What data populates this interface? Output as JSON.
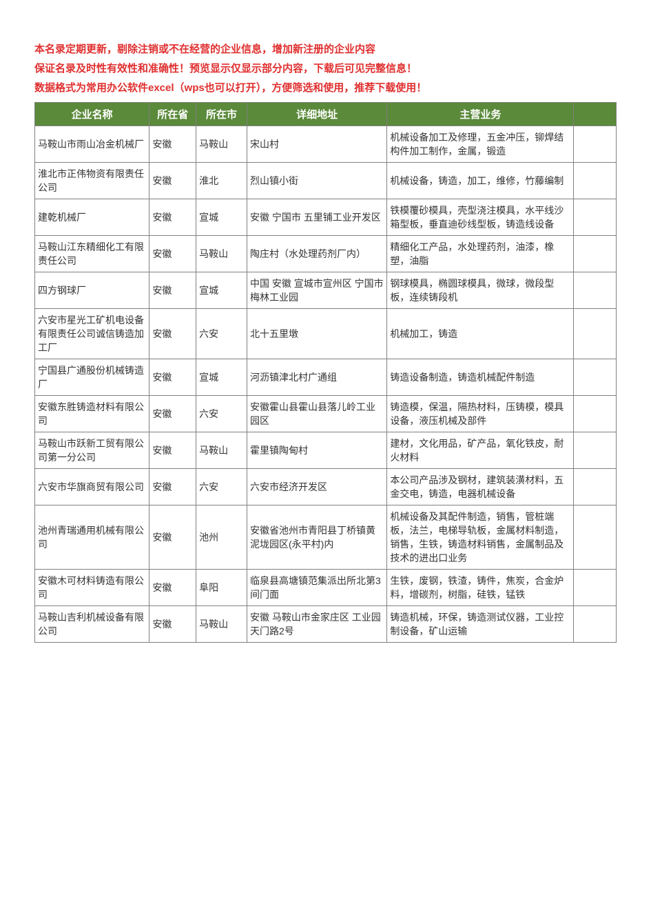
{
  "notices": {
    "line1": "本名录定期更新，剔除注销或不在经营的企业信息，增加新注册的企业内容",
    "line2": "保证名录及时性有效性和准确性！预览显示仅显示部分内容，下载后可见完整信息！",
    "line3": "数据格式为常用办公软件excel（wps也可以打开），方便筛选和使用，推荐下载使用！"
  },
  "headers": {
    "name": "企业名称",
    "province": "所在省",
    "city": "所在市",
    "address": "详细地址",
    "business": "主营业务",
    "last": ""
  },
  "rows": [
    {
      "name": "马鞍山市雨山冶金机械厂",
      "province": "安徽",
      "city": "马鞍山",
      "address": "宋山村",
      "business": "机械设备加工及修理，五金冲压，铆焊结构件加工制作，金属，锻造"
    },
    {
      "name": "淮北市正伟物资有限责任公司",
      "province": "安徽",
      "city": "淮北",
      "address": "烈山镇小街",
      "business": "机械设备，铸造，加工，维修，竹藤编制"
    },
    {
      "name": "建乾机械厂",
      "province": "安徽",
      "city": "宣城",
      "address": "安徽 宁国市 五里铺工业开发区",
      "business": "铁模覆砂模具，壳型浇注模具，水平线沙箱型板，垂直迪砂线型板，铸造线设备"
    },
    {
      "name": "马鞍山江东精细化工有限责任公司",
      "province": "安徽",
      "city": "马鞍山",
      "address": "陶庄村（水处理药剂厂内）",
      "business": "精细化工产品，水处理药剂，油漆，橡塑，油脂"
    },
    {
      "name": "四方钢球厂",
      "province": "安徽",
      "city": "宣城",
      "address": "中国 安徽 宣城市宣州区 宁国市梅林工业园",
      "business": "钢球模具，椭圆球模具，微球，微段型板，连续铸段机"
    },
    {
      "name": "六安市星光工矿机电设备有限责任公司诚信铸造加工厂",
      "province": "安徽",
      "city": "六安",
      "address": "北十五里墩",
      "business": "机械加工，铸造"
    },
    {
      "name": "宁国县广通股份机械铸造厂",
      "province": "安徽",
      "city": "宣城",
      "address": "河沥镇津北村广通组",
      "business": "铸造设备制造，铸造机械配件制造"
    },
    {
      "name": "安徽东胜铸造材料有限公司",
      "province": "安徽",
      "city": "六安",
      "address": "安徽霍山县霍山县落儿岭工业园区",
      "business": "铸造模，保温，隔热材料，压铸模，模具设备，液压机械及部件"
    },
    {
      "name": "马鞍山市跃新工贸有限公司第一分公司",
      "province": "安徽",
      "city": "马鞍山",
      "address": "霍里镇陶甸村",
      "business": "建材，文化用品，矿产品，氧化铁皮，耐火材料"
    },
    {
      "name": "六安市华旗商贸有限公司",
      "province": "安徽",
      "city": "六安",
      "address": "六安市经济开发区",
      "business": "本公司产品涉及钢材，建筑装潢材料，五金交电，铸造，电器机械设备"
    },
    {
      "name": "池州青瑞通用机械有限公司",
      "province": "安徽",
      "city": "池州",
      "address": "安徽省池州市青阳县丁桥镇黄泥垅园区(永平村)内",
      "business": "机械设备及其配件制造，销售，管桩端板，法兰，电梯导轨板，金属材料制造，销售，生铁，铸造材料销售，金属制品及技术的进出口业务"
    },
    {
      "name": "安徽木可材料铸造有限公司",
      "province": "安徽",
      "city": "阜阳",
      "address": "临泉县高塘镇范集派出所北第3间门面",
      "business": "生铁，废钢，铁渣，铸件，焦炭，合金炉料，增碳剂，树脂，硅铁，锰铁"
    },
    {
      "name": "马鞍山吉利机械设备有限公司",
      "province": "安徽",
      "city": "马鞍山",
      "address": "安徽 马鞍山市金家庄区 工业园天门路2号",
      "business": "铸造机械，环保，铸造测试仪器，工业控制设备，矿山运输"
    }
  ],
  "colors": {
    "notice_red": "#e03030",
    "header_bg": "#5b8a3a",
    "header_text": "#ffffff",
    "border": "#808080",
    "cell_text": "#333333"
  }
}
